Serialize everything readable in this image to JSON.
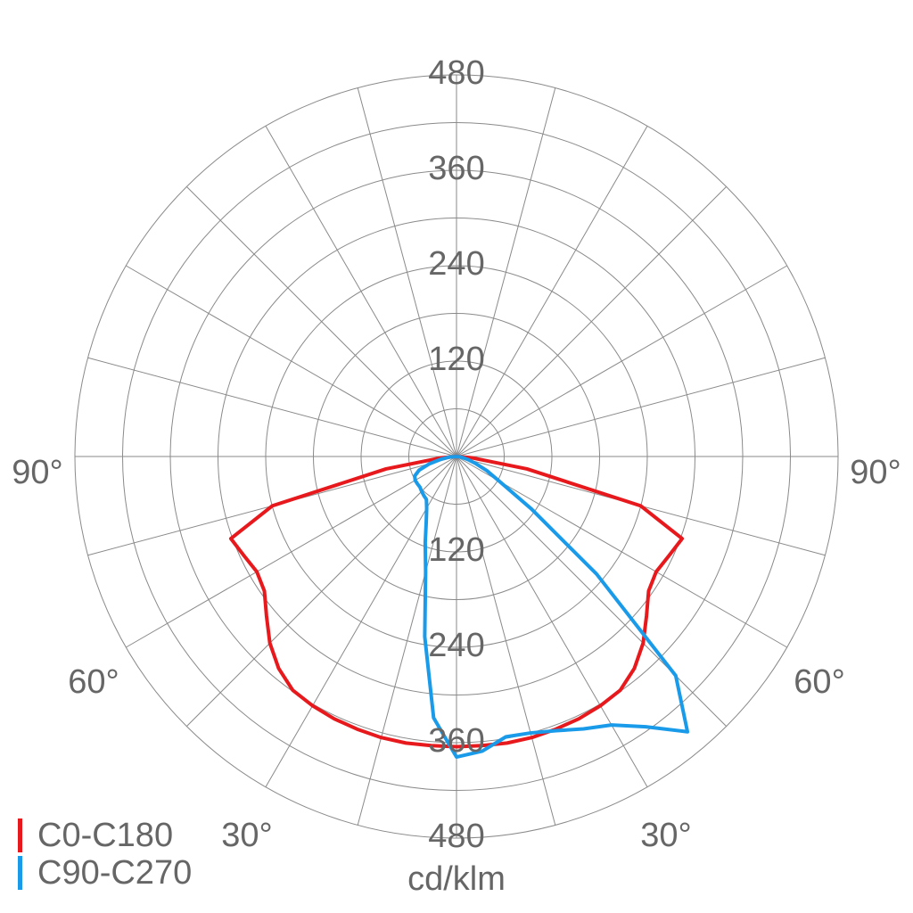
{
  "chart_data": {
    "type": "polar",
    "x_label": "cd/klm",
    "x": [
      -90,
      -85,
      -80,
      -75,
      -70,
      -65,
      -60,
      -55,
      -50,
      -45,
      -40,
      -35,
      -30,
      -25,
      -20,
      -15,
      -10,
      -5,
      0,
      5,
      10,
      15,
      20,
      25,
      30,
      35,
      40,
      45,
      50,
      55,
      60,
      65,
      70,
      75,
      80,
      85,
      90
    ],
    "series": [
      {
        "name": "C0-C180",
        "color": "#e8191c",
        "values": [
          0,
          20,
          90,
          240,
          302,
          295,
          290,
          295,
          312,
          332,
          348,
          359,
          362,
          364,
          365,
          366,
          366,
          365,
          365,
          365,
          366,
          366,
          365,
          364,
          362,
          359,
          348,
          332,
          312,
          295,
          290,
          295,
          302,
          240,
          90,
          20,
          0
        ]
      },
      {
        "name": "C90-C270",
        "color": "#1a9bea",
        "values": [
          0,
          10,
          20,
          35,
          50,
          58,
          60,
          60,
          60,
          62,
          64,
          66,
          75,
          90,
          115,
          150,
          230,
          330,
          378,
          372,
          358,
          360,
          367,
          378,
          390,
          415,
          452,
          390,
          230,
          115,
          62,
          42,
          25,
          15,
          8,
          3,
          0
        ]
      }
    ],
    "ylim": [
      0,
      480
    ],
    "yticks": [
      120,
      240,
      360,
      480
    ],
    "rgrid": [
      60,
      120,
      180,
      240,
      300,
      360,
      420,
      480
    ],
    "xgrid": [
      0,
      15,
      30,
      45,
      60,
      75,
      90,
      105,
      120,
      135,
      150,
      165,
      180,
      195,
      210,
      225,
      240,
      255,
      270,
      285,
      300,
      315,
      330,
      345
    ],
    "xticks": [
      {
        "value": -90,
        "label": "90°"
      },
      {
        "value": -60,
        "label": "60°"
      },
      {
        "value": -30,
        "label": "30°"
      },
      {
        "value": 30,
        "label": "30°"
      },
      {
        "value": 60,
        "label": "60°"
      },
      {
        "value": 90,
        "label": "90°"
      }
    ],
    "grid": true
  }
}
